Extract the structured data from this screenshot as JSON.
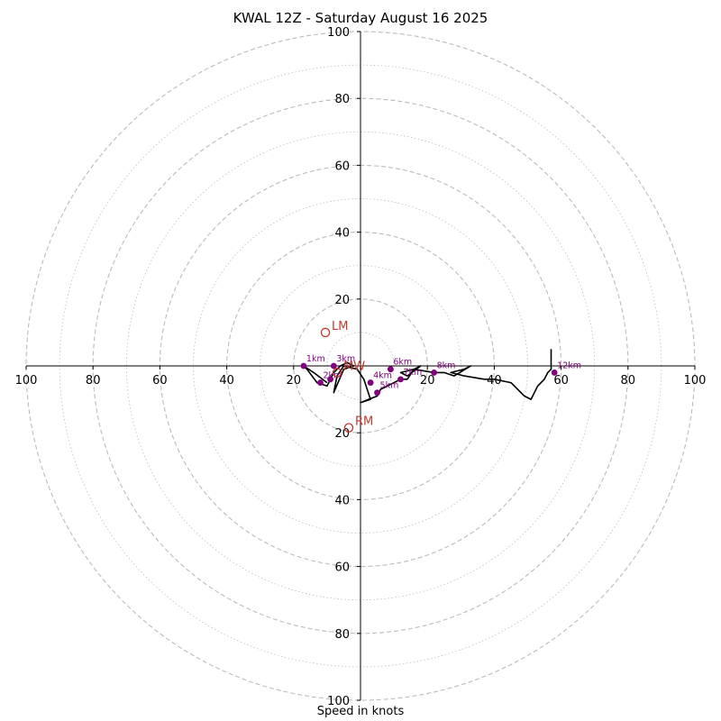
{
  "chart_data": {
    "type": "hodograph",
    "title": "KWAL 12Z - Saturday August 16 2025",
    "xlabel": "Speed in knots",
    "axis_range": [
      -100,
      100
    ],
    "ring_step_major": 20,
    "ring_step_minor": 10,
    "tick_labels": [
      "100",
      "80",
      "60",
      "40",
      "20",
      "20",
      "40",
      "60",
      "80",
      "100"
    ],
    "v_tick_labels_up": [
      "20",
      "40",
      "60",
      "80",
      "100"
    ],
    "v_tick_labels_down": [
      "20",
      "40",
      "60",
      "80",
      "100"
    ],
    "hodograph_trace": [
      [
        -10,
        -5
      ],
      [
        -14,
        -2
      ],
      [
        -17,
        0
      ],
      [
        -16,
        -1
      ],
      [
        -13,
        -5
      ],
      [
        -10,
        -6
      ],
      [
        -9,
        -4
      ],
      [
        -8,
        -2
      ],
      [
        -7,
        -1
      ],
      [
        -6,
        0
      ],
      [
        -4,
        1
      ],
      [
        -2,
        0
      ],
      [
        -5,
        -1
      ],
      [
        -8,
        -8
      ],
      [
        -7,
        -3
      ],
      [
        -5,
        0
      ],
      [
        -1,
        -1
      ],
      [
        1,
        -4
      ],
      [
        2,
        -7
      ],
      [
        3,
        -10
      ],
      [
        0,
        -11
      ],
      [
        5,
        -9
      ],
      [
        6,
        -7
      ],
      [
        8,
        -6
      ],
      [
        10,
        -5
      ],
      [
        12,
        -4
      ],
      [
        14,
        -4
      ],
      [
        16,
        -1
      ],
      [
        18,
        0
      ],
      [
        14,
        -3
      ],
      [
        12,
        -2
      ],
      [
        16,
        -1
      ],
      [
        22,
        -2
      ],
      [
        25,
        -2
      ],
      [
        28,
        -3
      ],
      [
        33,
        0
      ],
      [
        31,
        -1
      ],
      [
        27,
        -2
      ],
      [
        31,
        -3
      ],
      [
        37,
        -4
      ],
      [
        40,
        -4
      ],
      [
        45,
        -5
      ],
      [
        49,
        -9
      ],
      [
        51,
        -10
      ],
      [
        53,
        -6
      ],
      [
        55,
        -4
      ],
      [
        56,
        -2
      ],
      [
        57,
        -1
      ],
      [
        57,
        1
      ],
      [
        57,
        5
      ]
    ],
    "height_markers": [
      {
        "label": "1km",
        "u": -17,
        "v": 0
      },
      {
        "label": "2km",
        "u": -12,
        "v": -5
      },
      {
        "label": "3km",
        "u": -8,
        "v": 0
      },
      {
        "label": "",
        "u": -9,
        "v": -4
      },
      {
        "label": "4km",
        "u": 3,
        "v": -5
      },
      {
        "label": "5km",
        "u": 5,
        "v": -8
      },
      {
        "label": "6km",
        "u": 9,
        "v": -1
      },
      {
        "label": "7km",
        "u": 12,
        "v": -4
      },
      {
        "label": "8km",
        "u": 22,
        "v": -2
      },
      {
        "label": "12km",
        "u": 58,
        "v": -2
      }
    ],
    "storm_motion": [
      {
        "label": "LM",
        "u": -10.5,
        "v": 10
      },
      {
        "label": "RM",
        "u": -3.5,
        "v": -18.5
      },
      {
        "label": "MW",
        "u": -7,
        "v": -2
      }
    ],
    "colors": {
      "trace": "#000000",
      "markers": "#800080",
      "marker_labels": "#800080",
      "storm_motion": "#c0392b",
      "grid": "#bbbbbb"
    }
  }
}
